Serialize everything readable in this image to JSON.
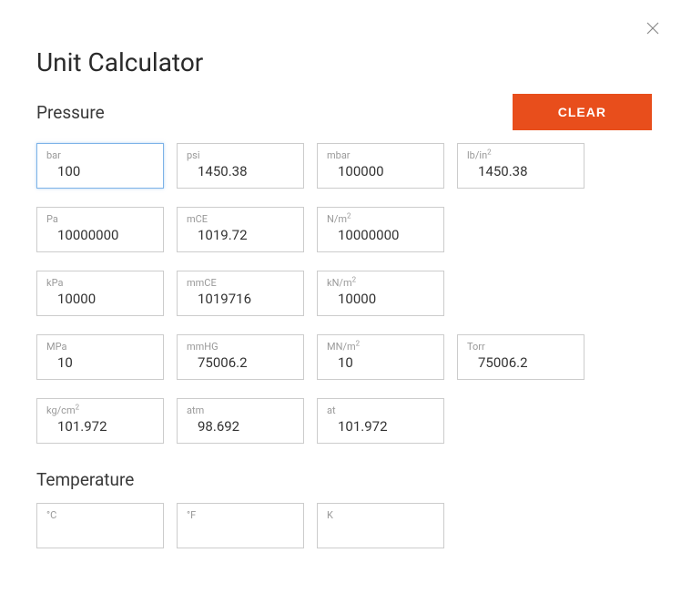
{
  "title": "Unit Calculator",
  "close_icon": "close-icon",
  "clear_button_label": "CLEAR",
  "accent_color": "#e84e1c",
  "border_color": "#cccccc",
  "focus_color": "#7db3e8",
  "label_color": "#999999",
  "text_color": "#333333",
  "sections": {
    "pressure": {
      "title": "Pressure",
      "fields": [
        {
          "label": "bar",
          "value": "100",
          "focused": true
        },
        {
          "label": "psi",
          "value": "1450.38"
        },
        {
          "label": "mbar",
          "value": "100000"
        },
        {
          "label_html": "lb/in<sup>2</sup>",
          "label": "lb/in2",
          "value": "1450.38"
        },
        {
          "label": "Pa",
          "value": "10000000"
        },
        {
          "label": "mCE",
          "value": "1019.72"
        },
        {
          "label_html": "N/m<sup>2</sup>",
          "label": "N/m2",
          "value": "10000000"
        },
        null,
        {
          "label": "kPa",
          "value": "10000"
        },
        {
          "label": "mmCE",
          "value": "1019716"
        },
        {
          "label_html": "kN/m<sup>2</sup>",
          "label": "kN/m2",
          "value": "10000"
        },
        null,
        {
          "label": "MPa",
          "value": "10"
        },
        {
          "label": "mmHG",
          "value": "75006.2"
        },
        {
          "label_html": "MN/m<sup>2</sup>",
          "label": "MN/m2",
          "value": "10"
        },
        {
          "label": "Torr",
          "value": "75006.2"
        },
        {
          "label_html": "kg/cm<sup>2</sup>",
          "label": "kg/cm2",
          "value": "101.972"
        },
        {
          "label": "atm",
          "value": "98.692"
        },
        {
          "label": "at",
          "value": "101.972"
        }
      ]
    },
    "temperature": {
      "title": "Temperature",
      "fields": [
        {
          "label": "°C",
          "value": ""
        },
        {
          "label": "°F",
          "value": ""
        },
        {
          "label": "K",
          "value": ""
        }
      ]
    }
  }
}
